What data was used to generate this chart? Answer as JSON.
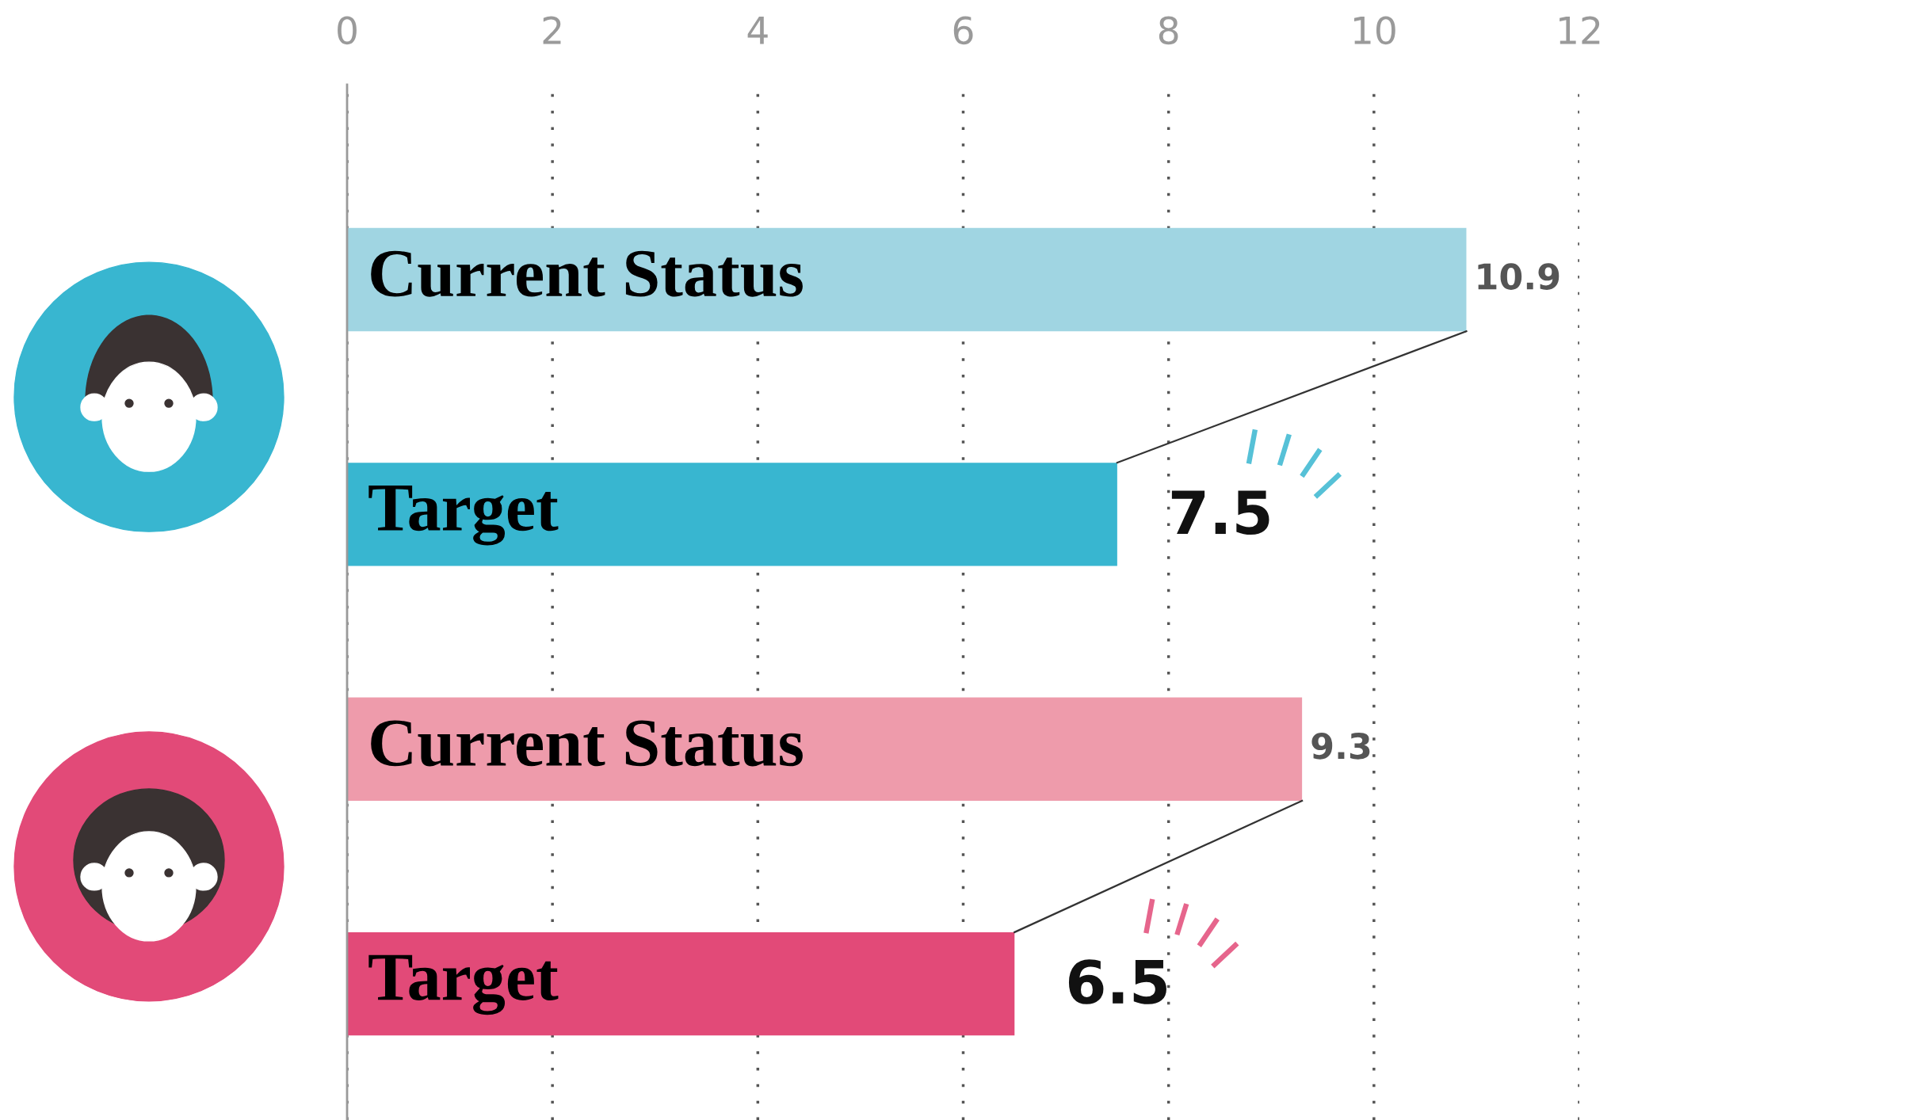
{
  "chart_data": {
    "type": "bar",
    "orientation": "horizontal",
    "categories": [
      "Current Status",
      "Target",
      "Current Status",
      "Target"
    ],
    "values": [
      10.9,
      7.5,
      9.3,
      6.5
    ],
    "colors": [
      "#a0d5e2",
      "#38b6d0",
      "#ee9bab",
      "#e24a78"
    ],
    "xlim": [
      0,
      12
    ],
    "xticks": [
      0,
      2,
      4,
      6,
      8,
      10,
      12
    ],
    "grid": "x",
    "data_labels": true
  }
}
